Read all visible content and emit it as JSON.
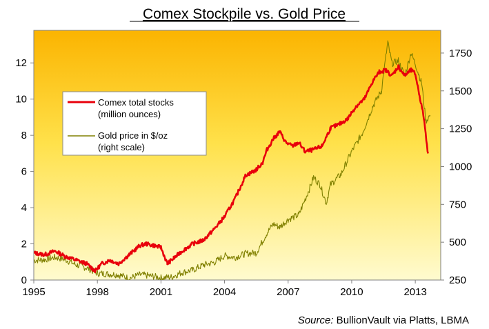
{
  "chart_data": {
    "type": "line",
    "title": "Comex Stockpile vs. Gold Price",
    "xlim": [
      1995,
      2014.2
    ],
    "x_ticks": [
      1995,
      1998,
      2001,
      2004,
      2007,
      2010,
      2013
    ],
    "y_left": {
      "range": [
        0,
        13.8
      ],
      "ticks": [
        0,
        2,
        4,
        6,
        8,
        10,
        12
      ]
    },
    "y_right": {
      "range": [
        250,
        1900
      ],
      "ticks": [
        250,
        500,
        750,
        1000,
        1250,
        1500,
        1750
      ]
    },
    "legend": {
      "position": "upper-left",
      "entries": [
        {
          "line1": "Comex total stocks",
          "line2": "(million ounces)",
          "color": "#e8000b"
        },
        {
          "line1": "Gold price in $/oz",
          "line2": "(right scale)",
          "color": "#808000"
        }
      ]
    },
    "series": [
      {
        "name": "Comex total stocks (million ounces)",
        "axis": "left",
        "color": "#e8000b",
        "x": [
          1995.0,
          1995.5,
          1996.0,
          1996.5,
          1997.0,
          1997.5,
          1997.9,
          1998.2,
          1998.6,
          1999.0,
          1999.5,
          2000.0,
          2000.3,
          2000.7,
          2001.0,
          2001.3,
          2001.6,
          2002.0,
          2002.5,
          2003.0,
          2003.5,
          2004.0,
          2004.5,
          2005.0,
          2005.2,
          2005.5,
          2005.8,
          2006.0,
          2006.3,
          2006.6,
          2006.9,
          2007.2,
          2007.5,
          2007.8,
          2008.2,
          2008.6,
          2009.0,
          2009.4,
          2009.8,
          2010.2,
          2010.6,
          2011.0,
          2011.3,
          2011.6,
          2011.9,
          2012.2,
          2012.5,
          2012.8,
          2013.0,
          2013.2,
          2013.4,
          2013.6
        ],
        "values": [
          1.5,
          1.4,
          1.6,
          1.3,
          1.1,
          0.9,
          0.5,
          0.9,
          1.1,
          0.9,
          1.4,
          1.9,
          2.0,
          1.9,
          1.8,
          0.9,
          1.2,
          1.6,
          2.0,
          2.2,
          2.8,
          3.5,
          4.5,
          5.8,
          5.9,
          6.1,
          6.5,
          7.2,
          7.8,
          8.2,
          7.6,
          7.4,
          7.6,
          7.1,
          7.2,
          7.4,
          8.4,
          8.6,
          8.9,
          9.6,
          10.0,
          11.0,
          11.5,
          11.6,
          11.3,
          11.8,
          11.3,
          11.6,
          11.4,
          10.2,
          9.0,
          7.0
        ]
      },
      {
        "name": "Gold price in $/oz (right scale)",
        "axis": "right",
        "color": "#808000",
        "x": [
          1995.0,
          1995.5,
          1996.0,
          1996.5,
          1997.0,
          1997.5,
          1998.0,
          1998.5,
          1999.0,
          1999.5,
          2000.0,
          2000.5,
          2001.0,
          2001.5,
          2002.0,
          2002.5,
          2003.0,
          2003.5,
          2004.0,
          2004.5,
          2005.0,
          2005.5,
          2006.0,
          2006.3,
          2006.6,
          2007.0,
          2007.5,
          2008.0,
          2008.2,
          2008.5,
          2008.8,
          2009.0,
          2009.5,
          2010.0,
          2010.5,
          2011.0,
          2011.4,
          2011.7,
          2011.9,
          2012.2,
          2012.5,
          2012.8,
          2013.0,
          2013.3,
          2013.5,
          2013.7
        ],
        "values": [
          380,
          385,
          400,
          385,
          350,
          330,
          295,
          290,
          285,
          262,
          285,
          278,
          265,
          270,
          300,
          315,
          350,
          365,
          410,
          400,
          425,
          430,
          560,
          620,
          600,
          650,
          680,
          850,
          930,
          880,
          760,
          880,
          950,
          1100,
          1220,
          1400,
          1500,
          1820,
          1680,
          1700,
          1600,
          1750,
          1680,
          1550,
          1300,
          1340
        ]
      }
    ],
    "source": {
      "label": "Source:",
      "text": " BullionVault via Platts, LBMA"
    }
  }
}
